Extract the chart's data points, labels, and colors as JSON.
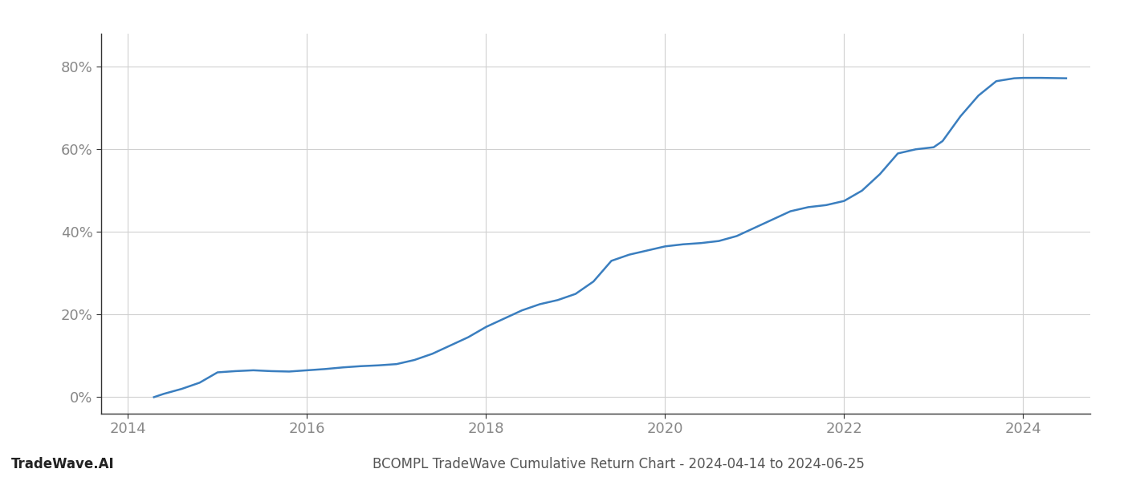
{
  "x_values": [
    2014.29,
    2014.4,
    2014.6,
    2014.8,
    2015.0,
    2015.2,
    2015.4,
    2015.6,
    2015.8,
    2016.0,
    2016.2,
    2016.4,
    2016.6,
    2016.8,
    2017.0,
    2017.2,
    2017.4,
    2017.6,
    2017.8,
    2018.0,
    2018.2,
    2018.4,
    2018.6,
    2018.8,
    2019.0,
    2019.2,
    2019.4,
    2019.6,
    2019.8,
    2020.0,
    2020.2,
    2020.4,
    2020.6,
    2020.8,
    2021.0,
    2021.2,
    2021.4,
    2021.6,
    2021.8,
    2022.0,
    2022.2,
    2022.4,
    2022.6,
    2022.8,
    2023.0,
    2023.1,
    2023.2,
    2023.3,
    2023.5,
    2023.7,
    2023.9,
    2024.0,
    2024.2,
    2024.48
  ],
  "y_values": [
    0.0,
    0.8,
    2.0,
    3.5,
    6.0,
    6.3,
    6.5,
    6.3,
    6.2,
    6.5,
    6.8,
    7.2,
    7.5,
    7.7,
    8.0,
    9.0,
    10.5,
    12.5,
    14.5,
    17.0,
    19.0,
    21.0,
    22.5,
    23.5,
    25.0,
    28.0,
    33.0,
    34.5,
    35.5,
    36.5,
    37.0,
    37.3,
    37.8,
    39.0,
    41.0,
    43.0,
    45.0,
    46.0,
    46.5,
    47.5,
    50.0,
    54.0,
    59.0,
    60.0,
    60.5,
    62.0,
    65.0,
    68.0,
    73.0,
    76.5,
    77.2,
    77.3,
    77.3,
    77.2
  ],
  "line_color": "#3a7ebf",
  "line_width": 1.8,
  "title": "BCOMPL TradeWave Cumulative Return Chart - 2024-04-14 to 2024-06-25",
  "watermark": "TradeWave.AI",
  "xlim": [
    2013.7,
    2024.75
  ],
  "ylim": [
    -4,
    88
  ],
  "yticks": [
    0,
    20,
    40,
    60,
    80
  ],
  "ytick_labels": [
    "0%",
    "20%",
    "40%",
    "60%",
    "80%"
  ],
  "xticks": [
    2014,
    2016,
    2018,
    2020,
    2022,
    2024
  ],
  "xtick_labels": [
    "2014",
    "2016",
    "2018",
    "2020",
    "2022",
    "2024"
  ],
  "grid_color": "#d0d0d0",
  "bg_color": "#ffffff",
  "title_fontsize": 12,
  "watermark_fontsize": 12,
  "tick_fontsize": 13
}
